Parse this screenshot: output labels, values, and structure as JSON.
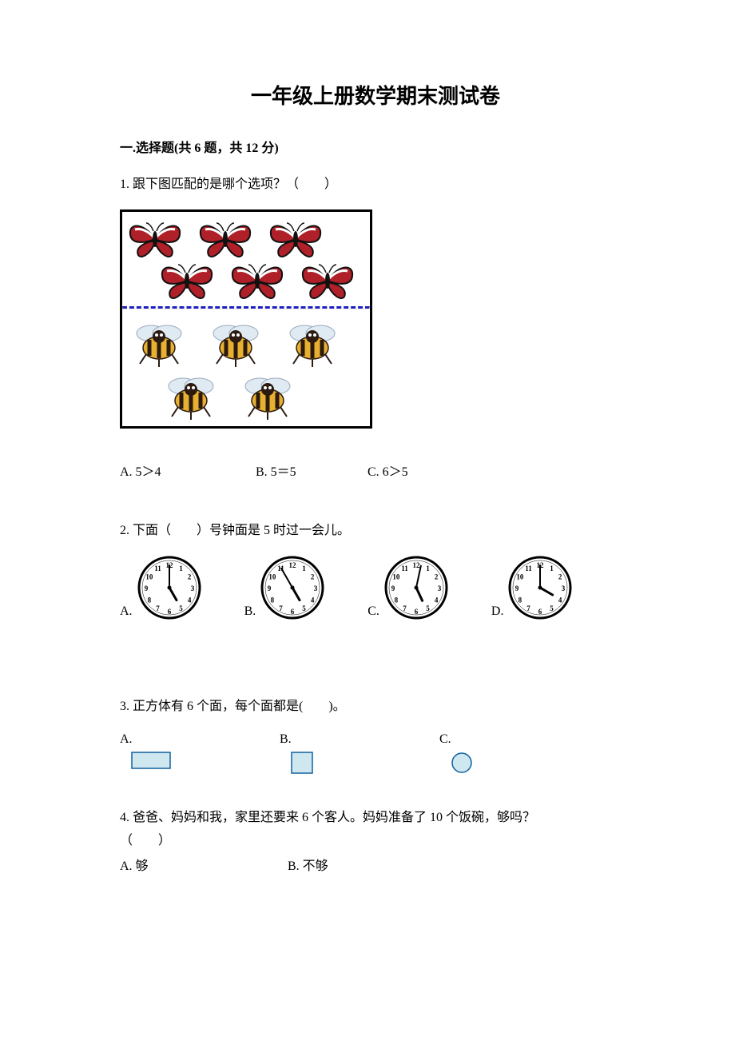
{
  "title": "一年级上册数学期末测试卷",
  "section1": {
    "heading": "一.选择题(共 6 题，共 12 分)"
  },
  "q1": {
    "text": "1. 跟下图匹配的是哪个选项？（　　）",
    "optA": "A. 5＞4",
    "optB": "B. 5＝5",
    "optC": "C. 6＞5",
    "butterfly_count": 6,
    "bee_count": 5,
    "butterfly_color_wing": "#b02028",
    "butterfly_color_stripe": "#ffffff",
    "butterfly_color_edge": "#111111",
    "bee_body": "#e8b030",
    "bee_stripe": "#2a1a10",
    "bee_wing": "#dfeaf2",
    "divider_color": "#2020c0"
  },
  "q2": {
    "text": "2. 下面（　　）号钟面是 5 时过一会儿。",
    "labelA": "A.",
    "labelB": "B.",
    "labelC": "C.",
    "labelD": "D.",
    "clocks": [
      {
        "hour_angle": 150,
        "minute_angle": 0
      },
      {
        "hour_angle": 150,
        "minute_angle": 330
      },
      {
        "hour_angle": 155,
        "minute_angle": 12
      },
      {
        "hour_angle": 120,
        "minute_angle": 0
      }
    ],
    "numerals": [
      "12",
      "1",
      "2",
      "3",
      "4",
      "5",
      "6",
      "7",
      "8",
      "9",
      "10",
      "11"
    ],
    "face_color": "#ffffff",
    "ring_color": "#000000",
    "hand_color": "#000000"
  },
  "q3": {
    "text": "3. 正方体有 6 个面，每个面都是(　　)。",
    "labelA": "A.",
    "labelB": "B.",
    "labelC": "C.",
    "shape_fill": "#cfe8ef",
    "shape_stroke": "#1060a0"
  },
  "q4": {
    "text": "4. 爸爸、妈妈和我，家里还要来 6 个客人。妈妈准备了 10 个饭碗，够吗？",
    "paren": "（　　）",
    "optA": "A. 够",
    "optB": "B. 不够"
  }
}
